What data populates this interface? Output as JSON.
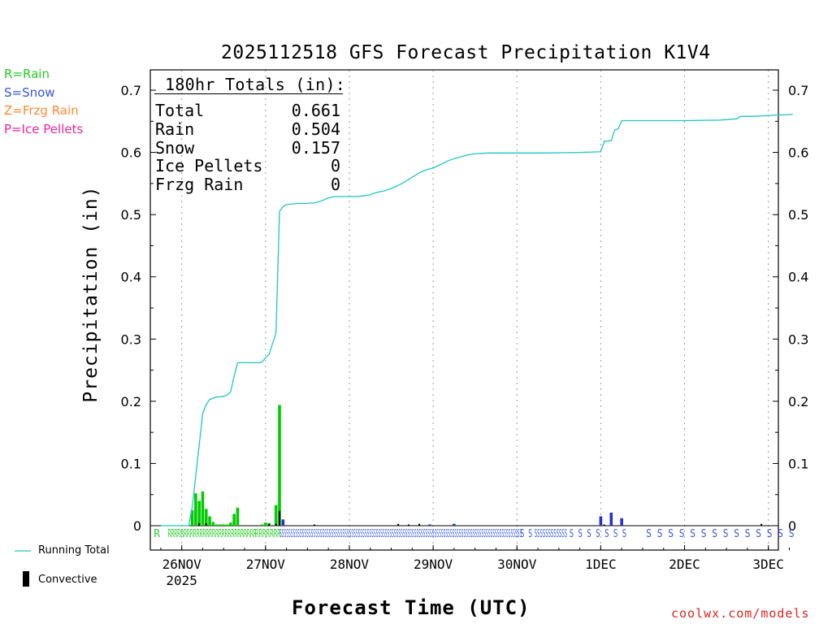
{
  "header": {
    "title": "2025112518 GFS Forecast Precipitation K1V4"
  },
  "type_legend": [
    {
      "label": "R=Rain",
      "color": "#22cc22"
    },
    {
      "label": "S=Snow",
      "color": "#3355dd"
    },
    {
      "label": "Z=Frzg Rain",
      "color": "#ff8833"
    },
    {
      "label": "P=Ice Pellets",
      "color": "#ee2299"
    }
  ],
  "totals": {
    "heading": "180hr Totals (in):",
    "rows": [
      {
        "label": "Total",
        "value": "0.661"
      },
      {
        "label": "Rain",
        "value": "0.504"
      },
      {
        "label": "Snow",
        "value": "0.157"
      },
      {
        "label": "Ice Pellets",
        "value": "0"
      },
      {
        "label": "Frzg Rain",
        "value": "0"
      }
    ]
  },
  "series_legend": {
    "running_total": "Running Total",
    "convective": "Convective"
  },
  "credit": "coolwx.com/models",
  "chart_data": {
    "type": "bar",
    "title": "2025112518 GFS Forecast Precipitation K1V4",
    "xlabel": "Forecast Time (UTC)",
    "ylabel": "Precipitation (in)",
    "ylim": [
      0,
      0.72
    ],
    "xlim_hours": [
      -3,
      181
    ],
    "y_ticks": [
      0,
      0.1,
      0.2,
      0.3,
      0.4,
      0.5,
      0.6,
      0.7
    ],
    "y_tick_labels": [
      "0",
      "0.1",
      "0.2",
      "0.3",
      "0.4",
      "0.5",
      "0.6",
      "0.7"
    ],
    "x_ticks": [
      {
        "hour": 6,
        "label": "26NOV",
        "sublabel": "2025"
      },
      {
        "hour": 30,
        "label": "27NOV"
      },
      {
        "hour": 54,
        "label": "28NOV"
      },
      {
        "hour": 78,
        "label": "29NOV"
      },
      {
        "hour": 102,
        "label": "30NOV"
      },
      {
        "hour": 126,
        "label": "1DEC"
      },
      {
        "hour": 150,
        "label": "2DEC"
      },
      {
        "hour": 174,
        "label": "3DEC"
      }
    ],
    "colors": {
      "rain": "#00cc00",
      "snow": "#2233cc",
      "convective": "#000000",
      "running_total": "#22c4c4"
    },
    "running_total": {
      "hours": [
        0,
        8,
        9,
        10,
        11,
        12,
        13,
        14,
        15,
        16,
        17,
        18,
        19,
        20,
        21,
        22,
        23,
        24,
        25,
        26,
        27,
        28,
        29,
        30,
        31,
        33,
        34,
        35,
        36,
        37,
        38,
        39,
        40,
        42,
        44,
        46,
        48,
        50,
        52,
        54,
        56,
        58,
        60,
        62,
        64,
        66,
        68,
        70,
        72,
        74,
        76,
        78,
        80,
        82,
        84,
        86,
        88,
        90,
        94,
        100,
        110,
        120,
        126,
        127,
        128,
        129,
        130,
        131,
        132,
        135,
        140,
        150,
        160,
        165,
        166,
        170,
        176,
        181
      ],
      "values": [
        0,
        0,
        0.03,
        0.08,
        0.13,
        0.18,
        0.195,
        0.203,
        0.205,
        0.207,
        0.207,
        0.208,
        0.21,
        0.215,
        0.24,
        0.262,
        0.262,
        0.262,
        0.262,
        0.262,
        0.262,
        0.262,
        0.263,
        0.27,
        0.275,
        0.31,
        0.505,
        0.513,
        0.516,
        0.517,
        0.517,
        0.518,
        0.518,
        0.518,
        0.519,
        0.522,
        0.527,
        0.529,
        0.529,
        0.529,
        0.529,
        0.53,
        0.532,
        0.536,
        0.538,
        0.542,
        0.547,
        0.553,
        0.56,
        0.567,
        0.572,
        0.575,
        0.58,
        0.586,
        0.59,
        0.593,
        0.596,
        0.598,
        0.599,
        0.599,
        0.599,
        0.6,
        0.601,
        0.618,
        0.618,
        0.619,
        0.636,
        0.638,
        0.651,
        0.651,
        0.651,
        0.651,
        0.652,
        0.654,
        0.658,
        0.658,
        0.66,
        0.661
      ]
    },
    "rain_bars": [
      {
        "hour": 9,
        "value": 0.025
      },
      {
        "hour": 10,
        "value": 0.052
      },
      {
        "hour": 11,
        "value": 0.04
      },
      {
        "hour": 12,
        "value": 0.055
      },
      {
        "hour": 13,
        "value": 0.027
      },
      {
        "hour": 14,
        "value": 0.015
      },
      {
        "hour": 15,
        "value": 0.006
      },
      {
        "hour": 16,
        "value": 0.002
      },
      {
        "hour": 17,
        "value": 0.002
      },
      {
        "hour": 18,
        "value": 0.002
      },
      {
        "hour": 19,
        "value": 0.002
      },
      {
        "hour": 20,
        "value": 0.005
      },
      {
        "hour": 21,
        "value": 0.019
      },
      {
        "hour": 22,
        "value": 0.029
      },
      {
        "hour": 29,
        "value": 0.002
      },
      {
        "hour": 30,
        "value": 0.005
      },
      {
        "hour": 31,
        "value": 0.004
      },
      {
        "hour": 33,
        "value": 0.033
      },
      {
        "hour": 34,
        "value": 0.194
      }
    ],
    "snow_bars": [
      {
        "hour": 35,
        "value": 0.01
      },
      {
        "hour": 77,
        "value": 0.002
      },
      {
        "hour": 84,
        "value": 0.003
      },
      {
        "hour": 126,
        "value": 0.015
      },
      {
        "hour": 129,
        "value": 0.021
      },
      {
        "hour": 132,
        "value": 0.012
      }
    ],
    "convective_bars": [
      {
        "hour": 11,
        "value": 0.004
      },
      {
        "hour": 13,
        "value": 0.004
      },
      {
        "hour": 31,
        "value": 0.003
      },
      {
        "hour": 33,
        "value": 0.003
      },
      {
        "hour": 34,
        "value": 0.024
      },
      {
        "hour": 44,
        "value": 0.002
      },
      {
        "hour": 68,
        "value": 0.003
      },
      {
        "hour": 71,
        "value": 0.002
      },
      {
        "hour": 74,
        "value": 0.003
      },
      {
        "hour": 127,
        "value": 0.002
      },
      {
        "hour": 172,
        "value": 0.003
      }
    ],
    "type_row": [
      {
        "text": "R",
        "start": -2,
        "end": -2,
        "kind": "rain"
      },
      {
        "text": "RRRRRRRRRRRRRRRRRRRRRRRRRRRR",
        "start": 2,
        "end": 26,
        "kind": "rain"
      },
      {
        "text": "RRRRRRR",
        "start": 27,
        "end": 33,
        "kind": "rain"
      },
      {
        "text": "SSSSSSSSSSSSSSSSSSSSSSSSSSSSSSSSSSSSSSSSSSSSSSSSSSSSSSSSSSSSSSSSSSSSSSSSSSSSSSSSSSSSSSSSSSSSSSSSSSSSSSSSSSSS",
        "start": 34,
        "end": 102,
        "kind": "snow"
      },
      {
        "text": "S S",
        "start": 103,
        "end": 105,
        "kind": "snow"
      },
      {
        "text": "SSSSSSSSSSSS",
        "start": 107,
        "end": 115,
        "kind": "snow"
      },
      {
        "text": "S S S S S S S",
        "start": 117,
        "end": 132,
        "kind": "snow"
      },
      {
        "text": "S S S S S S S S S S S S S S",
        "start": 139,
        "end": 180,
        "kind": "snow"
      }
    ]
  }
}
